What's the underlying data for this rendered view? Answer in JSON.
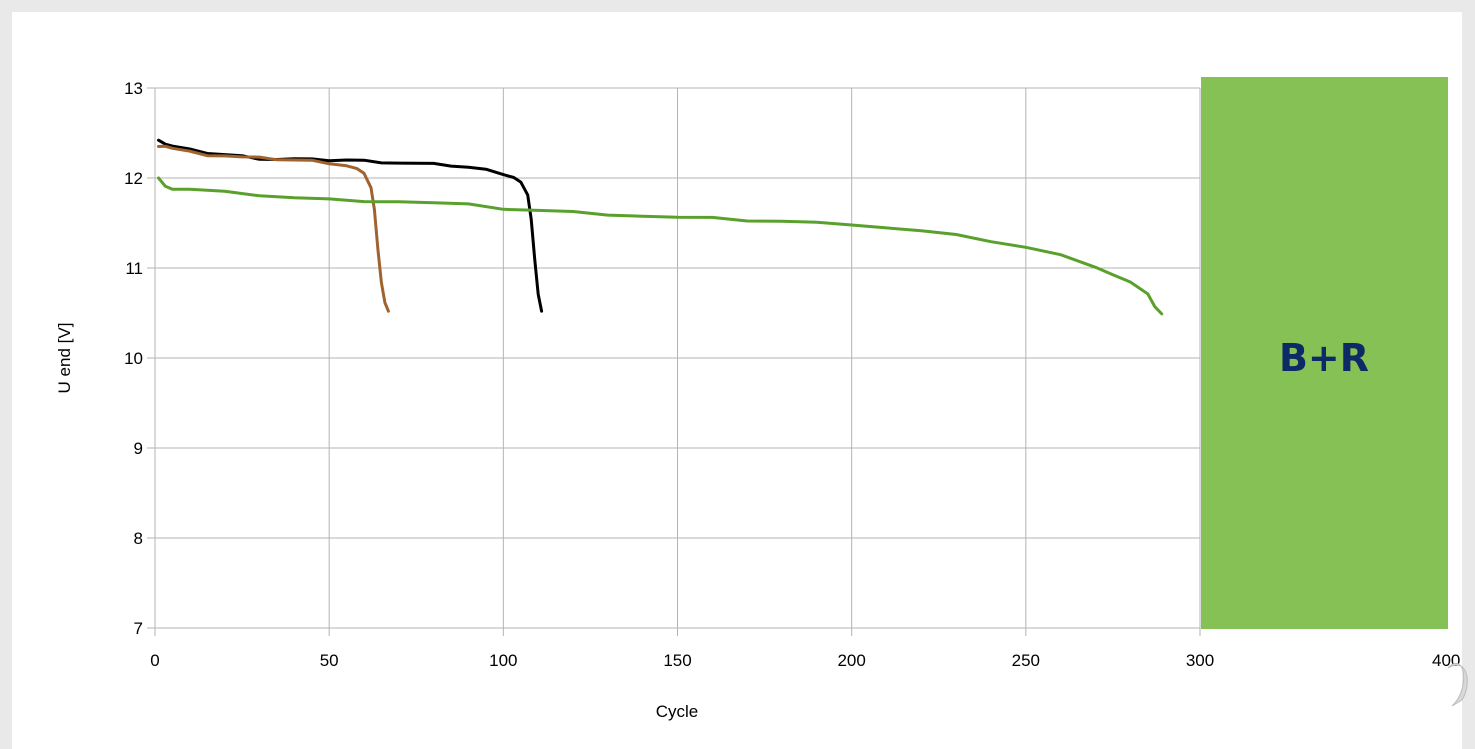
{
  "chart_data": {
    "type": "line",
    "title": "",
    "xlabel": "Cycle",
    "ylabel": "U end [V]",
    "xlim": [
      0,
      300
    ],
    "ylim": [
      7,
      13
    ],
    "x_ticks": [
      0,
      50,
      100,
      150,
      200,
      250,
      300
    ],
    "y_ticks": [
      7,
      8,
      9,
      10,
      11,
      12,
      13
    ],
    "extra_x_label": "400",
    "grid": true,
    "legend": "none",
    "series": [
      {
        "color": "#000000",
        "points": [
          [
            1,
            12.42
          ],
          [
            3,
            12.38
          ],
          [
            5,
            12.35
          ],
          [
            10,
            12.31
          ],
          [
            15,
            12.28
          ],
          [
            20,
            12.26
          ],
          [
            25,
            12.24
          ],
          [
            30,
            12.22
          ],
          [
            35,
            12.21
          ],
          [
            40,
            12.21
          ],
          [
            45,
            12.2
          ],
          [
            50,
            12.2
          ],
          [
            55,
            12.2
          ],
          [
            60,
            12.19
          ],
          [
            65,
            12.18
          ],
          [
            70,
            12.17
          ],
          [
            75,
            12.16
          ],
          [
            80,
            12.15
          ],
          [
            85,
            12.14
          ],
          [
            90,
            12.12
          ],
          [
            95,
            12.09
          ],
          [
            100,
            12.05
          ],
          [
            103,
            12.01
          ],
          [
            105,
            11.95
          ],
          [
            107,
            11.8
          ],
          [
            108,
            11.55
          ],
          [
            109,
            11.1
          ],
          [
            110,
            10.7
          ],
          [
            111,
            10.52
          ]
        ]
      },
      {
        "color": "#a0632d",
        "points": [
          [
            1,
            12.35
          ],
          [
            3,
            12.36
          ],
          [
            5,
            12.33
          ],
          [
            10,
            12.29
          ],
          [
            15,
            12.26
          ],
          [
            20,
            12.25
          ],
          [
            25,
            12.23
          ],
          [
            30,
            12.22
          ],
          [
            35,
            12.21
          ],
          [
            40,
            12.2
          ],
          [
            45,
            12.19
          ],
          [
            50,
            12.17
          ],
          [
            55,
            12.14
          ],
          [
            58,
            12.1
          ],
          [
            60,
            12.04
          ],
          [
            62,
            11.9
          ],
          [
            63,
            11.65
          ],
          [
            64,
            11.2
          ],
          [
            65,
            10.85
          ],
          [
            66,
            10.62
          ],
          [
            67,
            10.52
          ]
        ]
      },
      {
        "color": "#5aa02c",
        "points": [
          [
            1,
            12.0
          ],
          [
            3,
            11.92
          ],
          [
            5,
            11.88
          ],
          [
            10,
            11.87
          ],
          [
            20,
            11.84
          ],
          [
            30,
            11.81
          ],
          [
            40,
            11.78
          ],
          [
            50,
            11.76
          ],
          [
            60,
            11.75
          ],
          [
            70,
            11.74
          ],
          [
            80,
            11.72
          ],
          [
            90,
            11.7
          ],
          [
            100,
            11.66
          ],
          [
            110,
            11.64
          ],
          [
            120,
            11.62
          ],
          [
            130,
            11.6
          ],
          [
            140,
            11.58
          ],
          [
            150,
            11.56
          ],
          [
            160,
            11.55
          ],
          [
            170,
            11.53
          ],
          [
            180,
            11.52
          ],
          [
            190,
            11.5
          ],
          [
            200,
            11.49
          ],
          [
            210,
            11.45
          ],
          [
            220,
            11.41
          ],
          [
            230,
            11.36
          ],
          [
            240,
            11.3
          ],
          [
            250,
            11.23
          ],
          [
            260,
            11.14
          ],
          [
            270,
            11.02
          ],
          [
            275,
            10.93
          ],
          [
            280,
            10.84
          ],
          [
            285,
            10.7
          ],
          [
            287,
            10.58
          ],
          [
            289,
            10.49
          ]
        ]
      }
    ]
  },
  "badge": {
    "text": "B+R",
    "fill_color": "#85c155",
    "text_color": "#0d2a66"
  }
}
